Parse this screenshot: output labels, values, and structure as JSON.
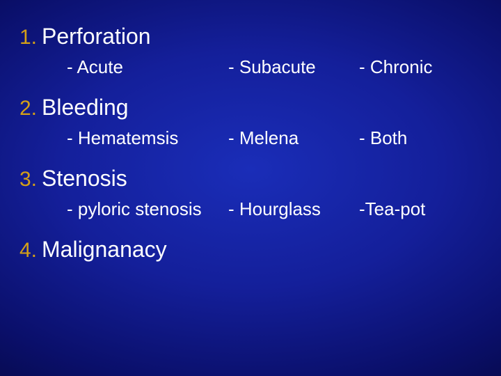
{
  "slide": {
    "background_gradient": [
      "#1a2db8",
      "#141f9a",
      "#0a0f6a",
      "#020428"
    ],
    "number_color": "#d4a017",
    "text_color": "#ffffff",
    "heading_fontsize": 32,
    "sub_fontsize": 26,
    "number_fontsize": 30,
    "font_family": "Arial",
    "items": [
      {
        "num": "1.",
        "title": "Perforation",
        "subs": [
          "- Acute",
          "- Subacute",
          "- Chronic"
        ]
      },
      {
        "num": "2.",
        "title": "Bleeding",
        "subs": [
          "- Hematemsis",
          "- Melena",
          "- Both"
        ]
      },
      {
        "num": "3.",
        "title": "Stenosis",
        "subs": [
          "- pyloric stenosis",
          "- Hourglass",
          "-Tea-pot"
        ]
      },
      {
        "num": "4.",
        "title": "Malignanacy",
        "subs": []
      }
    ]
  }
}
